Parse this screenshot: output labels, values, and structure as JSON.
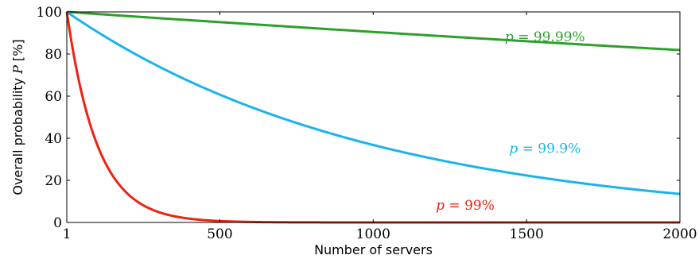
{
  "chart_data": {
    "type": "line",
    "xlabel": "Number of servers",
    "ylabel": {
      "text": "Overall probability ",
      "symbol": "P",
      "unit": " [%]"
    },
    "xlim": [
      1,
      2000
    ],
    "ylim": [
      0,
      100
    ],
    "x_ticks": [
      1,
      500,
      1000,
      1500,
      2000
    ],
    "y_ticks": [
      0,
      20,
      40,
      60,
      80,
      100
    ],
    "grid": false,
    "legend": "inline labels",
    "series": [
      {
        "name": "p = 99.99%",
        "label_var": "p",
        "label_rest": " = 99.99%",
        "p": 0.9999,
        "color": "#2ca02c",
        "x": [
          1,
          250,
          500,
          750,
          1000,
          1250,
          1500,
          1750,
          2000
        ],
        "y": [
          100,
          97.5,
          95.1,
          92.8,
          90.5,
          88.3,
          86.1,
          83.9,
          81.9
        ]
      },
      {
        "name": "p = 99.9%",
        "label_var": "p",
        "label_rest": " = 99.9%",
        "p": 0.999,
        "color": "#1ab4ea",
        "x": [
          1,
          250,
          500,
          750,
          1000,
          1250,
          1500,
          1750,
          2000
        ],
        "y": [
          100,
          77.9,
          60.6,
          47.2,
          36.8,
          28.6,
          22.3,
          17.4,
          13.5
        ]
      },
      {
        "name": "p = 99%",
        "label_var": "p",
        "label_rest": " = 99%",
        "p": 0.99,
        "color": "#ee2211",
        "x": [
          1,
          50,
          100,
          150,
          200,
          300,
          400,
          500,
          1000,
          2000
        ],
        "y": [
          100,
          60.5,
          36.6,
          22.1,
          13.4,
          4.9,
          1.8,
          0.7,
          0.0,
          0.0
        ]
      }
    ]
  }
}
